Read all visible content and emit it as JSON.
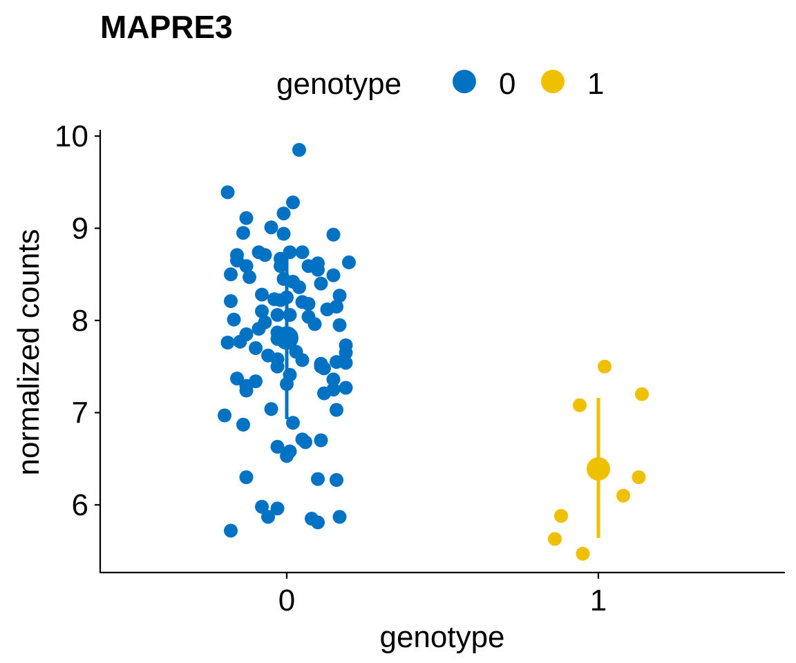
{
  "chart_data": {
    "type": "scatter",
    "title": "MAPRE3",
    "xlabel": "genotype",
    "ylabel": "normalized counts",
    "categories": [
      "0",
      "1"
    ],
    "ylim": [
      5.3,
      10.05
    ],
    "yticks": [
      6,
      7,
      8,
      9,
      10
    ],
    "grid": false,
    "legend": {
      "title": "genotype",
      "placement": "top",
      "entries": [
        {
          "label": "0",
          "color": "#0072C3"
        },
        {
          "label": "1",
          "color": "#EFC000"
        }
      ]
    },
    "series": [
      {
        "name": "0",
        "category": "0",
        "color": "#0072C3",
        "summary": {
          "mean": 7.81,
          "lower": 6.93,
          "upper": 8.69
        },
        "points": [
          {
            "jitter": 0.04,
            "y": 9.85
          },
          {
            "jitter": -0.19,
            "y": 9.39
          },
          {
            "jitter": 0.02,
            "y": 9.28
          },
          {
            "jitter": -0.01,
            "y": 9.16
          },
          {
            "jitter": -0.13,
            "y": 9.11
          },
          {
            "jitter": -0.05,
            "y": 9.01
          },
          {
            "jitter": -0.14,
            "y": 8.95
          },
          {
            "jitter": -0.01,
            "y": 8.94
          },
          {
            "jitter": 0.15,
            "y": 8.93
          },
          {
            "jitter": -0.09,
            "y": 8.74
          },
          {
            "jitter": 0.01,
            "y": 8.74
          },
          {
            "jitter": 0.05,
            "y": 8.74
          },
          {
            "jitter": -0.16,
            "y": 8.71
          },
          {
            "jitter": -0.07,
            "y": 8.71
          },
          {
            "jitter": -0.02,
            "y": 8.67
          },
          {
            "jitter": -0.16,
            "y": 8.65
          },
          {
            "jitter": 0.2,
            "y": 8.63
          },
          {
            "jitter": 0.1,
            "y": 8.62
          },
          {
            "jitter": -0.13,
            "y": 8.59
          },
          {
            "jitter": -0.02,
            "y": 8.59
          },
          {
            "jitter": 0.07,
            "y": 8.59
          },
          {
            "jitter": 0.1,
            "y": 8.55
          },
          {
            "jitter": -0.18,
            "y": 8.5
          },
          {
            "jitter": 0.15,
            "y": 8.49
          },
          {
            "jitter": -0.12,
            "y": 8.47
          },
          {
            "jitter": -0.01,
            "y": 8.45
          },
          {
            "jitter": 0.02,
            "y": 8.42
          },
          {
            "jitter": 0.11,
            "y": 8.4
          },
          {
            "jitter": 0.04,
            "y": 8.36
          },
          {
            "jitter": -0.08,
            "y": 8.28
          },
          {
            "jitter": 0.17,
            "y": 8.27
          },
          {
            "jitter": 0.0,
            "y": 8.25
          },
          {
            "jitter": -0.04,
            "y": 8.23
          },
          {
            "jitter": -0.02,
            "y": 8.22
          },
          {
            "jitter": -0.18,
            "y": 8.21
          },
          {
            "jitter": 0.05,
            "y": 8.2
          },
          {
            "jitter": 0.07,
            "y": 8.18
          },
          {
            "jitter": 0.16,
            "y": 8.15
          },
          {
            "jitter": 0.13,
            "y": 8.12
          },
          {
            "jitter": -0.08,
            "y": 8.1
          },
          {
            "jitter": -0.03,
            "y": 8.06
          },
          {
            "jitter": 0.01,
            "y": 8.06
          },
          {
            "jitter": 0.07,
            "y": 8.04
          },
          {
            "jitter": -0.17,
            "y": 8.01
          },
          {
            "jitter": -0.07,
            "y": 7.98
          },
          {
            "jitter": 0.09,
            "y": 7.96
          },
          {
            "jitter": 0.17,
            "y": 7.95
          },
          {
            "jitter": -0.09,
            "y": 7.91
          },
          {
            "jitter": -0.03,
            "y": 7.87
          },
          {
            "jitter": -0.13,
            "y": 7.85
          },
          {
            "jitter": -0.03,
            "y": 7.8
          },
          {
            "jitter": -0.15,
            "y": 7.77
          },
          {
            "jitter": -0.19,
            "y": 7.76
          },
          {
            "jitter": 0.19,
            "y": 7.73
          },
          {
            "jitter": -0.1,
            "y": 7.7
          },
          {
            "jitter": 0.03,
            "y": 7.66
          },
          {
            "jitter": 0.19,
            "y": 7.65
          },
          {
            "jitter": -0.06,
            "y": 7.62
          },
          {
            "jitter": -0.03,
            "y": 7.58
          },
          {
            "jitter": 0.05,
            "y": 7.57
          },
          {
            "jitter": 0.16,
            "y": 7.55
          },
          {
            "jitter": 0.19,
            "y": 7.54
          },
          {
            "jitter": 0.11,
            "y": 7.53
          },
          {
            "jitter": 0.11,
            "y": 7.5
          },
          {
            "jitter": 0.12,
            "y": 7.48
          },
          {
            "jitter": -0.03,
            "y": 7.5
          },
          {
            "jitter": 0.01,
            "y": 7.41
          },
          {
            "jitter": -0.16,
            "y": 7.37
          },
          {
            "jitter": -0.1,
            "y": 7.34
          },
          {
            "jitter": 0.15,
            "y": 7.36
          },
          {
            "jitter": -0.13,
            "y": 7.29
          },
          {
            "jitter": 0.0,
            "y": 7.31
          },
          {
            "jitter": 0.19,
            "y": 7.27
          },
          {
            "jitter": -0.13,
            "y": 7.24
          },
          {
            "jitter": 0.15,
            "y": 7.25
          },
          {
            "jitter": 0.12,
            "y": 7.21
          },
          {
            "jitter": -0.05,
            "y": 7.04
          },
          {
            "jitter": 0.16,
            "y": 7.03
          },
          {
            "jitter": -0.2,
            "y": 6.97
          },
          {
            "jitter": 0.02,
            "y": 6.89
          },
          {
            "jitter": -0.14,
            "y": 6.87
          },
          {
            "jitter": 0.05,
            "y": 6.71
          },
          {
            "jitter": 0.11,
            "y": 6.7
          },
          {
            "jitter": 0.06,
            "y": 6.68
          },
          {
            "jitter": -0.03,
            "y": 6.63
          },
          {
            "jitter": 0.01,
            "y": 6.58
          },
          {
            "jitter": 0.0,
            "y": 6.53
          },
          {
            "jitter": -0.13,
            "y": 6.3
          },
          {
            "jitter": 0.1,
            "y": 6.28
          },
          {
            "jitter": 0.16,
            "y": 6.27
          },
          {
            "jitter": -0.08,
            "y": 5.98
          },
          {
            "jitter": -0.03,
            "y": 5.96
          },
          {
            "jitter": -0.06,
            "y": 5.87
          },
          {
            "jitter": 0.17,
            "y": 5.87
          },
          {
            "jitter": 0.08,
            "y": 5.85
          },
          {
            "jitter": 0.1,
            "y": 5.81
          },
          {
            "jitter": -0.18,
            "y": 5.72
          }
        ]
      },
      {
        "name": "1",
        "category": "1",
        "color": "#EFC000",
        "summary": {
          "mean": 6.39,
          "lower": 5.64,
          "upper": 7.16
        },
        "points": [
          {
            "jitter": 0.02,
            "y": 7.5
          },
          {
            "jitter": 0.14,
            "y": 7.2
          },
          {
            "jitter": -0.06,
            "y": 7.08
          },
          {
            "jitter": 0.13,
            "y": 6.3
          },
          {
            "jitter": 0.08,
            "y": 6.1
          },
          {
            "jitter": -0.12,
            "y": 5.88
          },
          {
            "jitter": -0.14,
            "y": 5.63
          },
          {
            "jitter": -0.05,
            "y": 5.47
          }
        ]
      }
    ]
  }
}
